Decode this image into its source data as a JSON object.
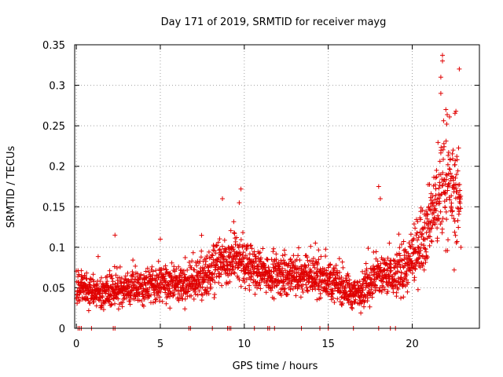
{
  "chart_data": {
    "type": "scatter",
    "title": "Day 171 of 2019, SRMTID for receiver mayg",
    "xlabel": "GPS time / hours",
    "ylabel": "SRMTID / TECUs",
    "xlim": [
      -0.1,
      24
    ],
    "ylim": [
      0,
      0.35
    ],
    "grid": true,
    "marker": "plus",
    "color": "#e00000",
    "xticks": [
      0,
      5,
      10,
      15,
      20
    ],
    "xtick_labels": [
      "0",
      "5",
      "10",
      "15",
      "20"
    ],
    "yticks": [
      0,
      0.05,
      0.1,
      0.15,
      0.2,
      0.25,
      0.3,
      0.35
    ],
    "ytick_labels": [
      "0",
      "0.05",
      "0.1",
      "0.15",
      "0.2",
      "0.25",
      "0.3",
      "0.35"
    ],
    "series": [
      {
        "name": "SRMTID",
        "hourly_profile": {
          "hours": [
            0,
            1,
            2,
            3,
            4,
            5,
            6,
            7,
            8,
            8.5,
            9,
            9.5,
            10,
            11,
            12,
            13,
            14,
            15,
            16,
            16.5,
            17,
            18,
            19,
            20,
            20.5,
            21,
            21.5,
            22,
            22.5,
            23
          ],
          "median": [
            0.05,
            0.045,
            0.045,
            0.05,
            0.05,
            0.055,
            0.055,
            0.055,
            0.07,
            0.08,
            0.075,
            0.09,
            0.08,
            0.07,
            0.065,
            0.065,
            0.065,
            0.06,
            0.05,
            0.04,
            0.05,
            0.065,
            0.065,
            0.08,
            0.11,
            0.13,
            0.16,
            0.18,
            0.17,
            0.15
          ],
          "spread": [
            0.02,
            0.02,
            0.02,
            0.022,
            0.022,
            0.024,
            0.024,
            0.025,
            0.03,
            0.035,
            0.03,
            0.035,
            0.03,
            0.025,
            0.025,
            0.025,
            0.025,
            0.025,
            0.022,
            0.02,
            0.025,
            0.03,
            0.03,
            0.035,
            0.045,
            0.05,
            0.06,
            0.07,
            0.06,
            0.05
          ]
        },
        "notable_points": [
          {
            "x": 2.3,
            "y": 0.115
          },
          {
            "x": 5.0,
            "y": 0.11
          },
          {
            "x": 8.7,
            "y": 0.16
          },
          {
            "x": 9.8,
            "y": 0.172
          },
          {
            "x": 9.7,
            "y": 0.155
          },
          {
            "x": 18.0,
            "y": 0.175
          },
          {
            "x": 18.1,
            "y": 0.16
          },
          {
            "x": 21.8,
            "y": 0.337
          },
          {
            "x": 21.8,
            "y": 0.33
          },
          {
            "x": 22.8,
            "y": 0.32
          },
          {
            "x": 21.7,
            "y": 0.31
          },
          {
            "x": 22.6,
            "y": 0.268
          },
          {
            "x": 21.7,
            "y": 0.29
          },
          {
            "x": 22.0,
            "y": 0.27
          },
          {
            "x": 22.9,
            "y": 0.1
          },
          {
            "x": 22.5,
            "y": 0.072
          }
        ],
        "zero_points_x": [
          0.1,
          0.2,
          0.3,
          0.9,
          2.2,
          2.3,
          6.7,
          6.8,
          8.1,
          9.0,
          9.1,
          9.2,
          10.6,
          11.4,
          11.5,
          11.8,
          13.4,
          14.5,
          15.0,
          16.5,
          18.0,
          18.7,
          19.0
        ]
      }
    ]
  }
}
